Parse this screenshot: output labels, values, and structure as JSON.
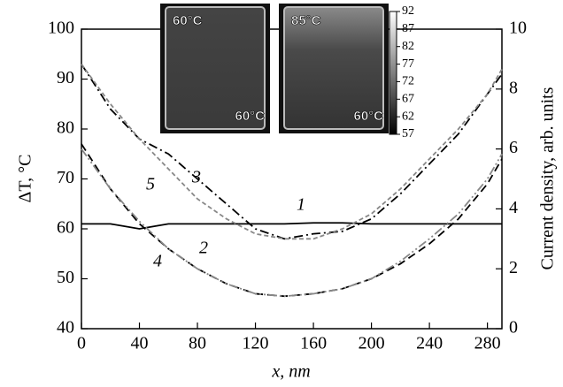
{
  "chart_data": {
    "type": "line",
    "x_label": "x, nm",
    "y_label": "ΔT, °C",
    "y2_label": "Current density, arb. units",
    "x": [
      0,
      20,
      40,
      60,
      80,
      100,
      120,
      140,
      160,
      180,
      200,
      220,
      240,
      260,
      280,
      290
    ],
    "series": [
      {
        "name": "1",
        "color": "#000000",
        "dash": "none",
        "values": [
          61,
          61,
          60,
          61,
          61,
          61,
          61,
          61,
          61.2,
          61.2,
          61,
          61,
          61,
          61,
          61,
          61
        ]
      },
      {
        "name": "2",
        "color": "#000000",
        "dash": "9 5",
        "values": [
          77,
          68,
          61,
          56,
          52,
          49,
          47,
          46.5,
          47,
          48,
          50,
          53,
          57,
          62,
          69,
          74
        ]
      },
      {
        "name": "3",
        "color": "#000000",
        "dash": "10 4 2 4",
        "values": [
          93,
          84,
          78,
          75,
          70,
          65,
          60,
          58,
          59,
          59.5,
          62,
          67,
          73,
          79,
          87,
          91
        ]
      },
      {
        "name": "4",
        "color": "#888888",
        "dash": "10 3 2 3 2 3",
        "values": [
          76,
          68,
          61.5,
          56,
          52,
          49,
          47,
          46.5,
          47,
          48,
          50,
          53.5,
          58,
          63,
          70,
          75
        ]
      },
      {
        "name": "5",
        "color": "#888888",
        "dash": "5 3",
        "values": [
          93,
          85,
          78,
          72,
          66,
          62,
          59,
          58,
          58,
          60,
          63,
          68,
          74,
          80,
          87,
          92
        ]
      }
    ],
    "xlim": [
      0,
      290
    ],
    "xticks": [
      0,
      40,
      80,
      120,
      160,
      200,
      240,
      280
    ],
    "ylim": [
      40,
      100
    ],
    "yticks": [
      40,
      50,
      60,
      70,
      80,
      90,
      100
    ],
    "y2lim": [
      0,
      10
    ],
    "y2ticks": [
      0,
      2,
      4,
      6,
      8,
      10
    ],
    "insets": [
      {
        "top_label": "60°C",
        "bottom_label": "60°C"
      },
      {
        "top_label": "85°C",
        "bottom_label": "60°C"
      }
    ],
    "colorbar": {
      "lim": [
        57,
        92
      ],
      "ticks": [
        92,
        87,
        82,
        77,
        72,
        67,
        62,
        57
      ]
    }
  }
}
